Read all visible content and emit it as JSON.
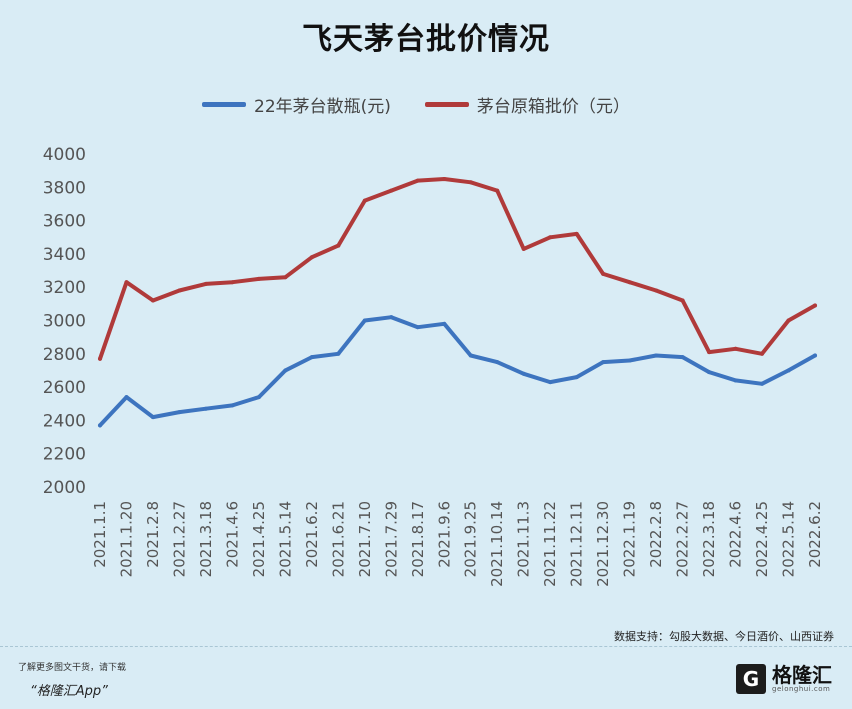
{
  "header": {
    "title": "飞天茅台批价情况"
  },
  "legend": {
    "series_a": "22年茅台散瓶(元)",
    "series_b": "茅台原箱批价（元）"
  },
  "source": "数据支持：勾股大数据、今日酒价、山西证券",
  "promo": {
    "line1": "了解更多图文干货，请下载",
    "line2": "“格隆汇App”"
  },
  "brand": {
    "logo": "G",
    "name": "格隆汇",
    "sub": "gelonghui.com"
  },
  "colors": {
    "blue": "#3d74bf",
    "red": "#b03a3a",
    "background": "#d9ecf5"
  },
  "chart_data": {
    "type": "line",
    "title": "飞天茅台批价情况",
    "xlabel": "",
    "ylabel": "",
    "ylim": [
      2000,
      4000
    ],
    "yticks": [
      2000,
      2200,
      2400,
      2600,
      2800,
      3000,
      3200,
      3400,
      3600,
      3800,
      4000
    ],
    "categories": [
      "2021.1.1",
      "2021.1.20",
      "2021.2.8",
      "2021.2.27",
      "2021.3.18",
      "2021.4.6",
      "2021.4.25",
      "2021.5.14",
      "2021.6.2",
      "2021.6.21",
      "2021.7.10",
      "2021.7.29",
      "2021.8.17",
      "2021.9.6",
      "2021.9.25",
      "2021.10.14",
      "2021.11.3",
      "2021.11.22",
      "2021.12.11",
      "2021.12.30",
      "2022.1.19",
      "2022.2.8",
      "2022.2.27",
      "2022.3.18",
      "2022.4.6",
      "2022.4.25",
      "2022.5.14",
      "2022.6.2"
    ],
    "series": [
      {
        "name": "22年茅台散瓶(元)",
        "color": "#3d74bf",
        "values": [
          2370,
          2540,
          2420,
          2450,
          2470,
          2490,
          2540,
          2700,
          2780,
          2800,
          3000,
          3020,
          2960,
          2980,
          2790,
          2750,
          2680,
          2630,
          2660,
          2750,
          2760,
          2790,
          2780,
          2690,
          2640,
          2620,
          2700,
          2790
        ]
      },
      {
        "name": "茅台原箱批价（元）",
        "color": "#b03a3a",
        "values": [
          2770,
          3230,
          3120,
          3180,
          3220,
          3230,
          3250,
          3260,
          3380,
          3450,
          3720,
          3780,
          3840,
          3850,
          3830,
          3780,
          3430,
          3500,
          3520,
          3280,
          3230,
          3180,
          3120,
          2810,
          2830,
          2800,
          3000,
          3090
        ]
      }
    ],
    "grid": false,
    "legend_position": "top"
  }
}
